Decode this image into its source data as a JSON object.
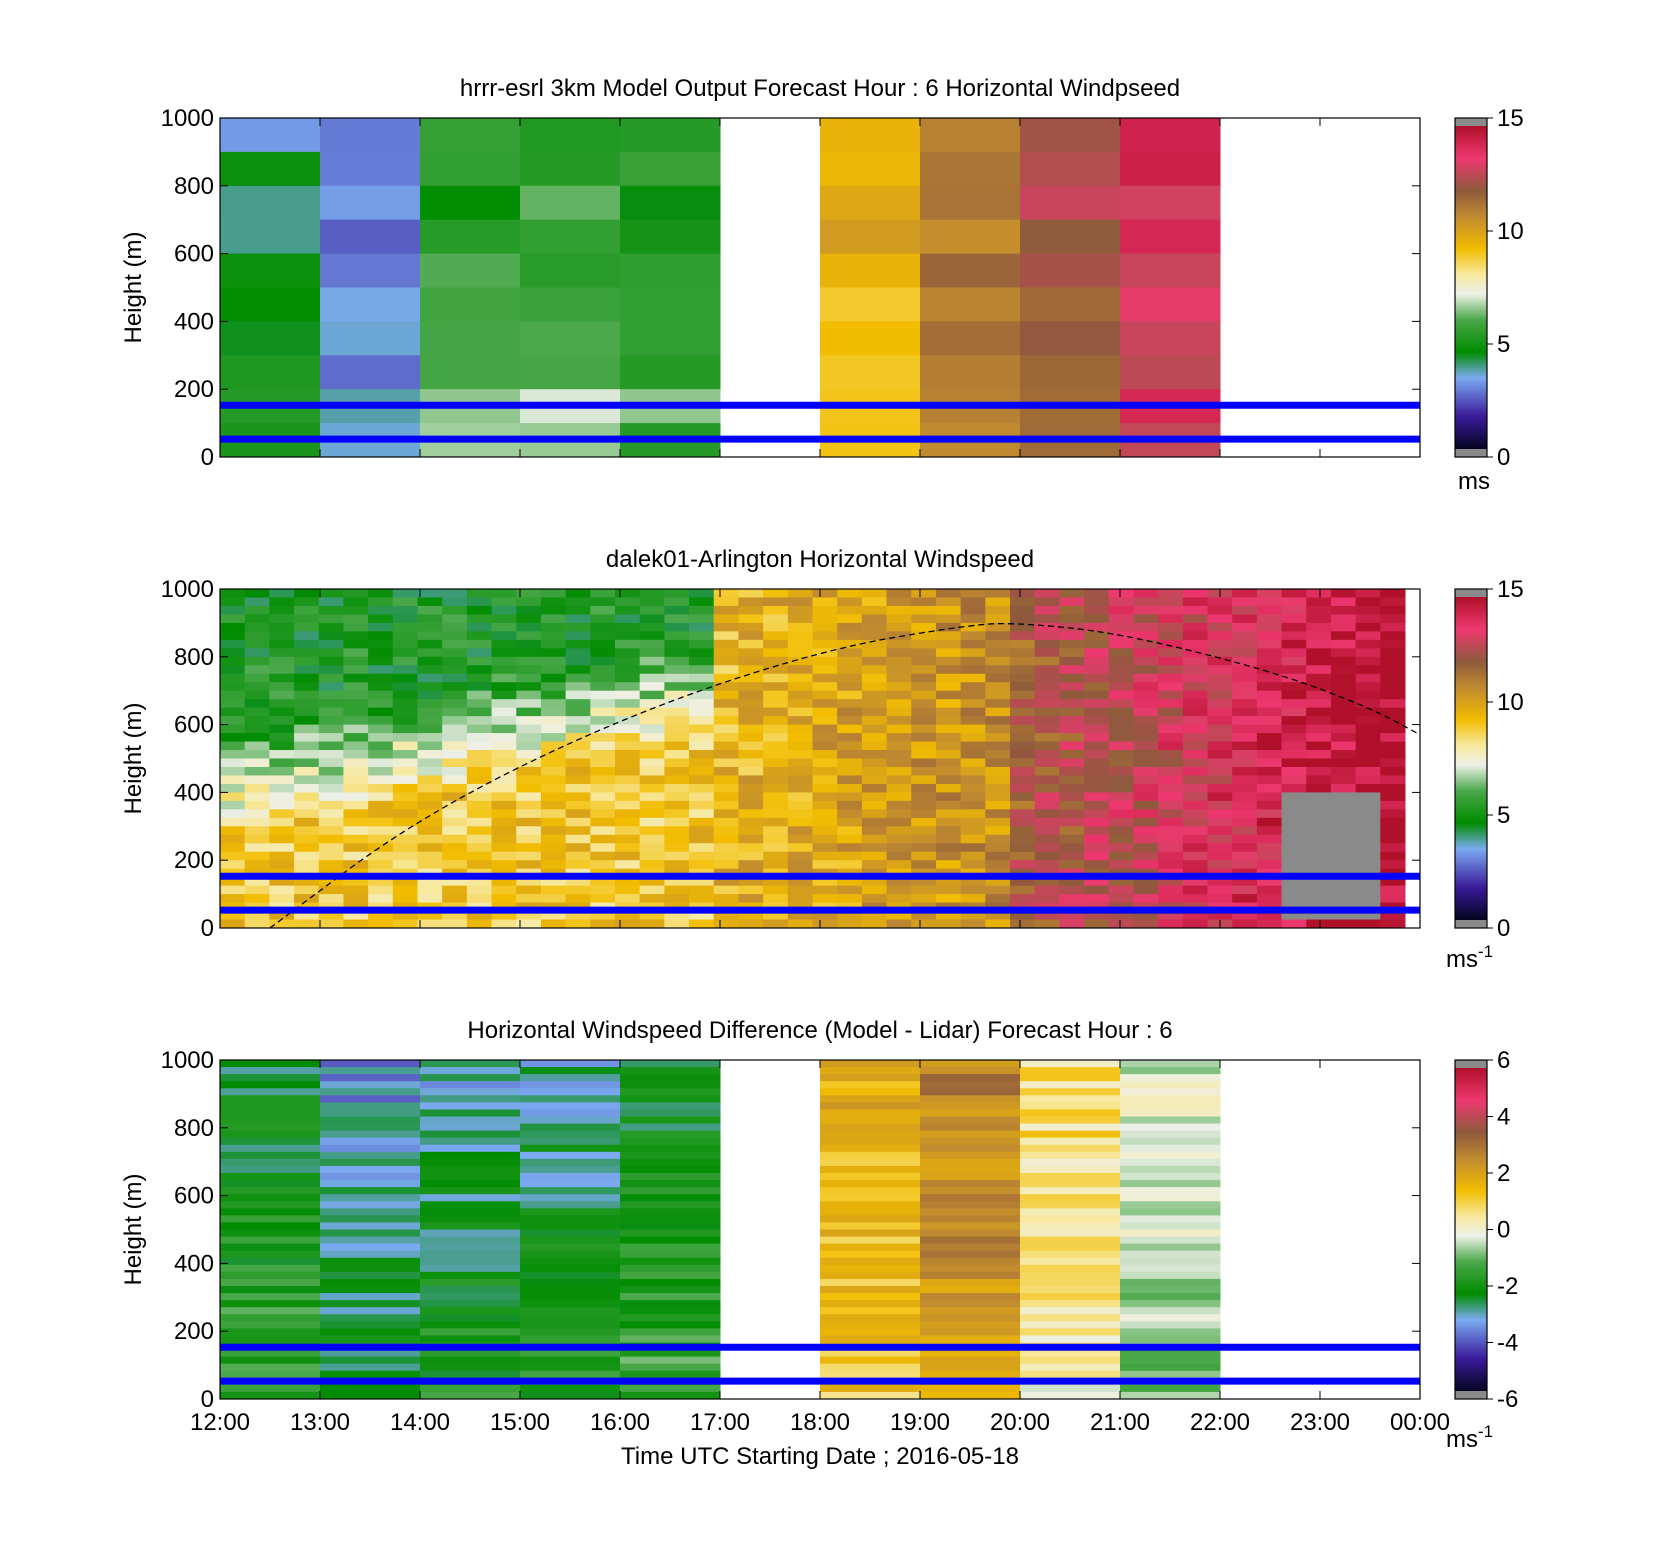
{
  "figure": {
    "xlabel": "Time UTC  Starting Date ; 2016-05-18"
  },
  "chart_data": [
    {
      "type": "heatmap",
      "title": "hrrr-esrl 3km Model Output   Forecast Hour : 6 Horizontal Windpseed",
      "ylabel": "Height (m)",
      "xlim": [
        "12:00",
        "00:00"
      ],
      "ylim": [
        0,
        1000
      ],
      "y_ticks": [
        "0",
        "200",
        "400",
        "600",
        "800",
        "1000"
      ],
      "colorbar": {
        "ticks": [
          "0",
          "5",
          "10",
          "15"
        ],
        "range": [
          0,
          15
        ],
        "unit_label": "ms",
        "unit_exp": ""
      },
      "reference_lines_m": [
        150,
        50
      ],
      "data_hours": [
        "12:00",
        "13:00",
        "14:00",
        "15:00",
        "16:00",
        "18:00",
        "19:00",
        "20:00",
        "21:00"
      ],
      "approx_mean_speed_ms": [
        4.5,
        3.0,
        5.5,
        6.0,
        5.5,
        9.5,
        11.0,
        12.0,
        13.5
      ]
    },
    {
      "type": "heatmap",
      "title": "dalek01-Arlington  Horizontal Windspeed",
      "ylabel": "Height (m)",
      "xlim": [
        "12:00",
        "00:00"
      ],
      "ylim": [
        0,
        1000
      ],
      "y_ticks": [
        "0",
        "200",
        "400",
        "600",
        "800",
        "1000"
      ],
      "colorbar": {
        "ticks": [
          "0",
          "5",
          "10",
          "15"
        ],
        "range": [
          0,
          15
        ],
        "unit_label": "ms",
        "unit_exp": "-1"
      },
      "reference_lines_m": [
        150,
        50
      ],
      "data_span": [
        "12:00",
        "23:50"
      ],
      "approx_profile": "5-7 m/s aloft and ~9 m/s below 500 m before 17:00; 9-11 m/s from 17:00-20:00; 12-15 m/s after 20:00; missing data near 23:00 below 400 m",
      "boundary_layer_curve": [
        [
          12.5,
          0
        ],
        [
          14,
          330
        ],
        [
          16,
          620
        ],
        [
          18,
          820
        ],
        [
          19.5,
          895
        ],
        [
          20,
          900
        ],
        [
          21,
          870
        ],
        [
          22.5,
          760
        ],
        [
          23.5,
          650
        ],
        [
          24,
          570
        ]
      ]
    },
    {
      "type": "heatmap",
      "title": "Horizontal Windspeed Difference (Model - Lidar) Forecast Hour : 6",
      "ylabel": "Height (m)",
      "xlim": [
        "12:00",
        "00:00"
      ],
      "ylim": [
        0,
        1000
      ],
      "y_ticks": [
        "0",
        "200",
        "400",
        "600",
        "800",
        "1000"
      ],
      "x_ticks": [
        "12:00",
        "13:00",
        "14:00",
        "15:00",
        "16:00",
        "17:00",
        "18:00",
        "19:00",
        "20:00",
        "21:00",
        "22:00",
        "23:00",
        "00:00"
      ],
      "colorbar": {
        "ticks": [
          "-6",
          "-4",
          "-2",
          "0",
          "2",
          "4",
          "6"
        ],
        "range": [
          -6,
          6
        ],
        "unit_label": "ms",
        "unit_exp": "-1"
      },
      "reference_lines_m": [
        150,
        50
      ],
      "data_hours": [
        "12:00",
        "13:00",
        "14:00",
        "15:00",
        "16:00",
        "18:00",
        "19:00",
        "20:00",
        "21:00"
      ],
      "approx_mean_difference_ms": [
        -2.0,
        -3.0,
        -2.5,
        -2.5,
        -2.0,
        1.5,
        2.5,
        0.5,
        -0.5
      ]
    }
  ]
}
